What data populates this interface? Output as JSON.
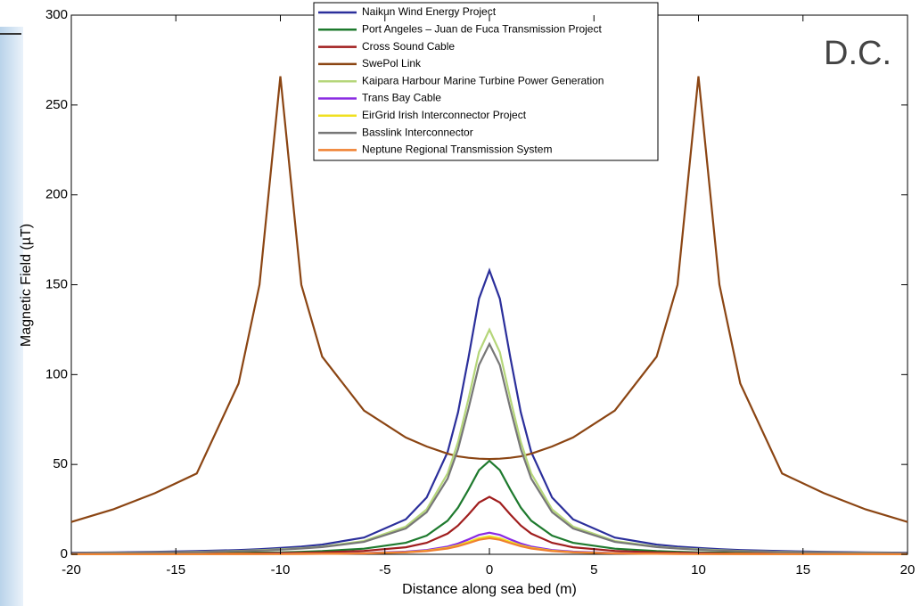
{
  "chart_data": {
    "type": "line",
    "xlabel": "Distance along sea bed (m)",
    "ylabel": "Magnetic Field (µT)",
    "annotation": "D.C.",
    "x": [
      -20,
      -18,
      -16,
      -14,
      -12,
      -11,
      -10,
      -9,
      -8,
      -6,
      -4,
      -3,
      -2,
      -1.5,
      -1,
      -0.5,
      0,
      0.5,
      1,
      1.5,
      2,
      3,
      4,
      6,
      8,
      9,
      10,
      11,
      12,
      14,
      16,
      18,
      20
    ],
    "series": [
      {
        "name": "Naikun Wind Energy Project",
        "color": "#2b2f9b",
        "values": [
          0.9,
          1.1,
          1.4,
          1.8,
          2.4,
          2.9,
          3.5,
          4.3,
          5.4,
          9.3,
          19.5,
          31.6,
          56.9,
          79,
          109.4,
          142.2,
          158,
          142.2,
          109.4,
          79,
          56.9,
          31.6,
          19.5,
          9.3,
          5.4,
          4.3,
          3.5,
          2.9,
          2.4,
          1.8,
          1.4,
          1.1,
          0.9
        ]
      },
      {
        "name": "Port Angeles – Juan de Fuca Transmission Project",
        "color": "#1e7a2e",
        "values": [
          0.3,
          0.4,
          0.5,
          0.6,
          0.8,
          1,
          1.1,
          1.4,
          1.8,
          3.1,
          6.4,
          10.4,
          18.7,
          26,
          36,
          46.8,
          52,
          46.8,
          36,
          26,
          18.7,
          10.4,
          6.4,
          3.1,
          1.8,
          1.4,
          1.1,
          1,
          0.8,
          0.6,
          0.5,
          0.4,
          0.3
        ]
      },
      {
        "name": "Cross Sound Cable",
        "color": "#a01e1e",
        "values": [
          0.2,
          0.2,
          0.3,
          0.4,
          0.5,
          0.6,
          0.7,
          0.9,
          1.1,
          1.9,
          3.9,
          6.4,
          11.5,
          16,
          22.1,
          28.8,
          32,
          28.8,
          22.1,
          16,
          11.5,
          6.4,
          3.9,
          1.9,
          1.1,
          0.9,
          0.7,
          0.6,
          0.5,
          0.4,
          0.3,
          0.2,
          0.2
        ]
      },
      {
        "name": "SwePol Link",
        "color": "#8b4513",
        "values": [
          18,
          25,
          34,
          45,
          95,
          150,
          266,
          150,
          110,
          80,
          65,
          60,
          56,
          54.5,
          53.7,
          53.2,
          53,
          53.2,
          53.7,
          54.5,
          56,
          60,
          65,
          80,
          110,
          150,
          266,
          150,
          95,
          45,
          34,
          25,
          18
        ]
      },
      {
        "name": "Kaipara Harbour Marine Turbine Power Generation",
        "color": "#b5d67a",
        "values": [
          0.7,
          0.9,
          1.1,
          1.4,
          1.9,
          2.3,
          2.8,
          3.4,
          4.3,
          7.4,
          15.4,
          25,
          45,
          62.5,
          86.5,
          112.5,
          125,
          112.5,
          86.5,
          62.5,
          45,
          25,
          15.4,
          7.4,
          4.3,
          3.4,
          2.8,
          2.3,
          1.9,
          1.4,
          1.1,
          0.9,
          0.7
        ]
      },
      {
        "name": "Trans Bay Cable",
        "color": "#8a2be2",
        "values": [
          0.1,
          0.1,
          0.1,
          0.1,
          0.2,
          0.2,
          0.3,
          0.3,
          0.4,
          0.7,
          1.5,
          2.4,
          4.3,
          6,
          8.3,
          10.8,
          12,
          10.8,
          8.3,
          6,
          4.3,
          2.4,
          1.5,
          0.7,
          0.4,
          0.3,
          0.3,
          0.2,
          0.2,
          0.1,
          0.1,
          0.1,
          0.1
        ]
      },
      {
        "name": "EirGrid Irish Interconnector Project",
        "color": "#f0e020",
        "values": [
          0.1,
          0.1,
          0.1,
          0.1,
          0.2,
          0.2,
          0.2,
          0.3,
          0.3,
          0.6,
          1.2,
          2,
          3.6,
          5,
          6.9,
          9,
          10,
          9,
          6.9,
          5,
          3.6,
          2,
          1.2,
          0.6,
          0.3,
          0.3,
          0.2,
          0.2,
          0.2,
          0.1,
          0.1,
          0.1,
          0.1
        ]
      },
      {
        "name": "Basslink Interconnector",
        "color": "#777777",
        "values": [
          0.7,
          0.8,
          1,
          1.3,
          1.8,
          2.1,
          2.6,
          3.2,
          4,
          6.9,
          14.4,
          23.4,
          42.1,
          58.5,
          81,
          105.3,
          117,
          105.3,
          81,
          58.5,
          42.1,
          23.4,
          14.4,
          6.9,
          4,
          3.2,
          2.6,
          2.1,
          1.8,
          1.3,
          1,
          0.8,
          0.7
        ]
      },
      {
        "name": "Neptune Regional Transmission System",
        "color": "#f08030",
        "values": [
          0.1,
          0.1,
          0.1,
          0.1,
          0.1,
          0.2,
          0.2,
          0.2,
          0.3,
          0.5,
          1.1,
          1.8,
          3.2,
          4.5,
          6.2,
          8.1,
          9,
          8.1,
          6.2,
          4.5,
          3.2,
          1.8,
          1.1,
          0.5,
          0.3,
          0.2,
          0.2,
          0.2,
          0.1,
          0.1,
          0.1,
          0.1,
          0.1
        ]
      }
    ],
    "xlim": [
      -20,
      20
    ],
    "xticks": [
      -20,
      -15,
      -10,
      -5,
      0,
      5,
      10,
      15,
      20
    ],
    "ylim": [
      0,
      300
    ],
    "yticks": [
      0,
      50,
      100,
      150,
      200,
      250,
      300
    ]
  }
}
